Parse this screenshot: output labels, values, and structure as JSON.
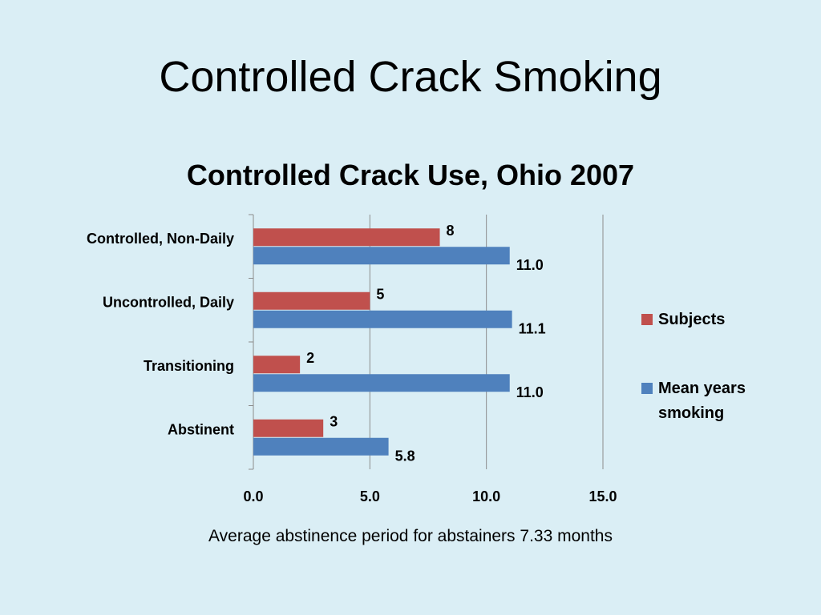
{
  "slide": {
    "title": "Controlled Crack Smoking",
    "footnote": "Average abstinence period for abstainers 7.33 months"
  },
  "chart_data": {
    "type": "bar",
    "orientation": "horizontal",
    "title": "Controlled Crack Use, Ohio 2007",
    "categories": [
      "Controlled, Non-Daily",
      "Uncontrolled, Daily",
      "Transitioning",
      "Abstinent"
    ],
    "series": [
      {
        "name": "Subjects",
        "color": "#c0504d",
        "values": [
          8,
          5,
          2,
          3
        ],
        "labels": [
          "8",
          "5",
          "2",
          "3"
        ]
      },
      {
        "name": "Mean years smoking",
        "color": "#4f81bd",
        "values": [
          11.0,
          11.1,
          11.0,
          5.8
        ],
        "labels": [
          "11.0",
          "11.1",
          "11.0",
          "5.8"
        ]
      }
    ],
    "xlim": [
      0,
      15
    ],
    "xticks": [
      0,
      5,
      10,
      15
    ],
    "xtick_labels": [
      "0.0",
      "5.0",
      "10.0",
      "15.0"
    ],
    "xlabel": "",
    "ylabel": "",
    "grid": "vertical",
    "legend_position": "right"
  },
  "legend": {
    "items": [
      {
        "label_line1": "Subjects",
        "label_line2": "",
        "color": "#c0504d"
      },
      {
        "label_line1": "Mean years",
        "label_line2": "smoking",
        "color": "#4f81bd"
      }
    ]
  }
}
